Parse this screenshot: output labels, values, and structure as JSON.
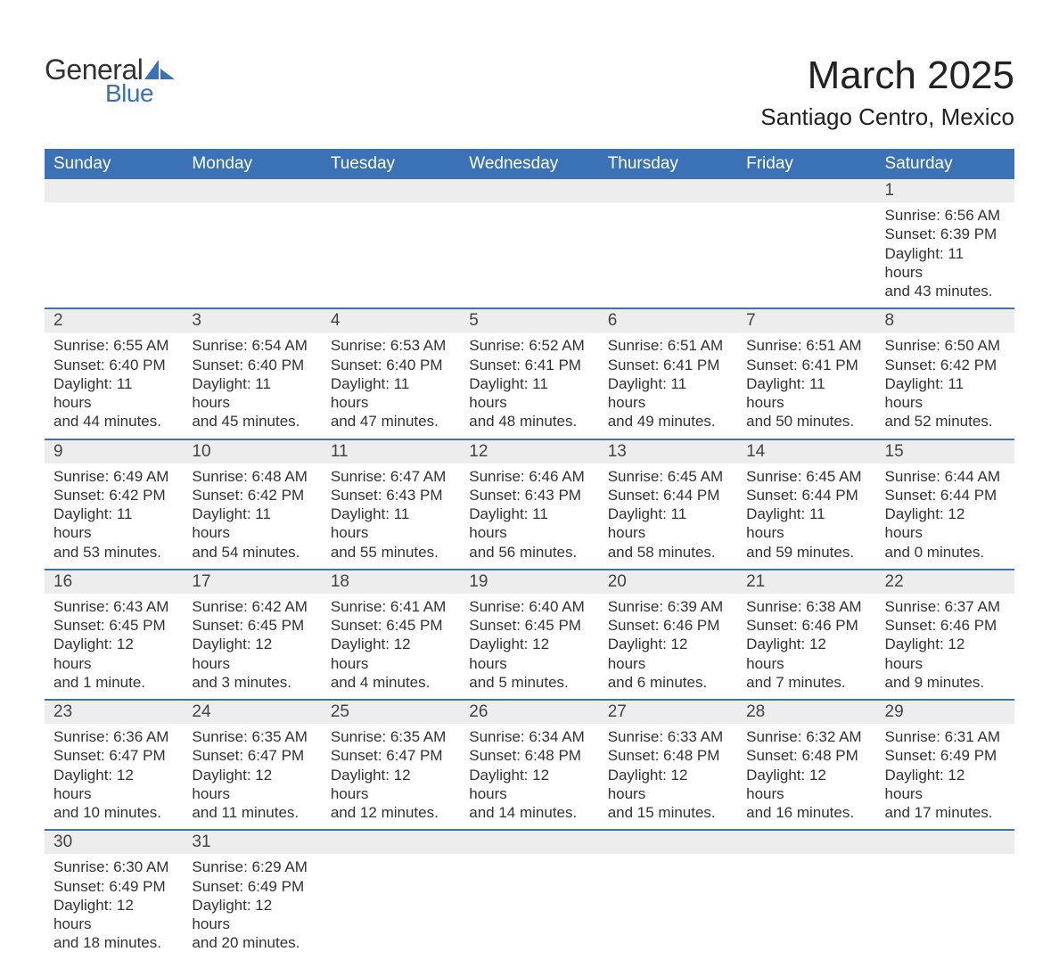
{
  "brand": {
    "name1": "General",
    "name2": "Blue",
    "text_color": "#333333",
    "accent_color": "#3a72b5"
  },
  "title": "March 2025",
  "location": "Santiago Centro, Mexico",
  "header_bg": "#3a72b5",
  "header_fg": "#ffffff",
  "daynum_bg": "#ededed",
  "row_border": "#3a72b5",
  "body_bg": "#ffffff",
  "text_color": "#333333",
  "font_family": "Arial, Helvetica, sans-serif",
  "title_fontsize": 44,
  "location_fontsize": 26,
  "header_fontsize": 19,
  "daynum_fontsize": 19,
  "detail_fontsize": 17,
  "day_headers": [
    "Sunday",
    "Monday",
    "Tuesday",
    "Wednesday",
    "Thursday",
    "Friday",
    "Saturday"
  ],
  "weeks": [
    [
      null,
      null,
      null,
      null,
      null,
      null,
      {
        "n": "1",
        "sr": "Sunrise: 6:56 AM",
        "ss": "Sunset: 6:39 PM",
        "d1": "Daylight: 11 hours",
        "d2": "and 43 minutes."
      }
    ],
    [
      {
        "n": "2",
        "sr": "Sunrise: 6:55 AM",
        "ss": "Sunset: 6:40 PM",
        "d1": "Daylight: 11 hours",
        "d2": "and 44 minutes."
      },
      {
        "n": "3",
        "sr": "Sunrise: 6:54 AM",
        "ss": "Sunset: 6:40 PM",
        "d1": "Daylight: 11 hours",
        "d2": "and 45 minutes."
      },
      {
        "n": "4",
        "sr": "Sunrise: 6:53 AM",
        "ss": "Sunset: 6:40 PM",
        "d1": "Daylight: 11 hours",
        "d2": "and 47 minutes."
      },
      {
        "n": "5",
        "sr": "Sunrise: 6:52 AM",
        "ss": "Sunset: 6:41 PM",
        "d1": "Daylight: 11 hours",
        "d2": "and 48 minutes."
      },
      {
        "n": "6",
        "sr": "Sunrise: 6:51 AM",
        "ss": "Sunset: 6:41 PM",
        "d1": "Daylight: 11 hours",
        "d2": "and 49 minutes."
      },
      {
        "n": "7",
        "sr": "Sunrise: 6:51 AM",
        "ss": "Sunset: 6:41 PM",
        "d1": "Daylight: 11 hours",
        "d2": "and 50 minutes."
      },
      {
        "n": "8",
        "sr": "Sunrise: 6:50 AM",
        "ss": "Sunset: 6:42 PM",
        "d1": "Daylight: 11 hours",
        "d2": "and 52 minutes."
      }
    ],
    [
      {
        "n": "9",
        "sr": "Sunrise: 6:49 AM",
        "ss": "Sunset: 6:42 PM",
        "d1": "Daylight: 11 hours",
        "d2": "and 53 minutes."
      },
      {
        "n": "10",
        "sr": "Sunrise: 6:48 AM",
        "ss": "Sunset: 6:42 PM",
        "d1": "Daylight: 11 hours",
        "d2": "and 54 minutes."
      },
      {
        "n": "11",
        "sr": "Sunrise: 6:47 AM",
        "ss": "Sunset: 6:43 PM",
        "d1": "Daylight: 11 hours",
        "d2": "and 55 minutes."
      },
      {
        "n": "12",
        "sr": "Sunrise: 6:46 AM",
        "ss": "Sunset: 6:43 PM",
        "d1": "Daylight: 11 hours",
        "d2": "and 56 minutes."
      },
      {
        "n": "13",
        "sr": "Sunrise: 6:45 AM",
        "ss": "Sunset: 6:44 PM",
        "d1": "Daylight: 11 hours",
        "d2": "and 58 minutes."
      },
      {
        "n": "14",
        "sr": "Sunrise: 6:45 AM",
        "ss": "Sunset: 6:44 PM",
        "d1": "Daylight: 11 hours",
        "d2": "and 59 minutes."
      },
      {
        "n": "15",
        "sr": "Sunrise: 6:44 AM",
        "ss": "Sunset: 6:44 PM",
        "d1": "Daylight: 12 hours",
        "d2": "and 0 minutes."
      }
    ],
    [
      {
        "n": "16",
        "sr": "Sunrise: 6:43 AM",
        "ss": "Sunset: 6:45 PM",
        "d1": "Daylight: 12 hours",
        "d2": "and 1 minute."
      },
      {
        "n": "17",
        "sr": "Sunrise: 6:42 AM",
        "ss": "Sunset: 6:45 PM",
        "d1": "Daylight: 12 hours",
        "d2": "and 3 minutes."
      },
      {
        "n": "18",
        "sr": "Sunrise: 6:41 AM",
        "ss": "Sunset: 6:45 PM",
        "d1": "Daylight: 12 hours",
        "d2": "and 4 minutes."
      },
      {
        "n": "19",
        "sr": "Sunrise: 6:40 AM",
        "ss": "Sunset: 6:45 PM",
        "d1": "Daylight: 12 hours",
        "d2": "and 5 minutes."
      },
      {
        "n": "20",
        "sr": "Sunrise: 6:39 AM",
        "ss": "Sunset: 6:46 PM",
        "d1": "Daylight: 12 hours",
        "d2": "and 6 minutes."
      },
      {
        "n": "21",
        "sr": "Sunrise: 6:38 AM",
        "ss": "Sunset: 6:46 PM",
        "d1": "Daylight: 12 hours",
        "d2": "and 7 minutes."
      },
      {
        "n": "22",
        "sr": "Sunrise: 6:37 AM",
        "ss": "Sunset: 6:46 PM",
        "d1": "Daylight: 12 hours",
        "d2": "and 9 minutes."
      }
    ],
    [
      {
        "n": "23",
        "sr": "Sunrise: 6:36 AM",
        "ss": "Sunset: 6:47 PM",
        "d1": "Daylight: 12 hours",
        "d2": "and 10 minutes."
      },
      {
        "n": "24",
        "sr": "Sunrise: 6:35 AM",
        "ss": "Sunset: 6:47 PM",
        "d1": "Daylight: 12 hours",
        "d2": "and 11 minutes."
      },
      {
        "n": "25",
        "sr": "Sunrise: 6:35 AM",
        "ss": "Sunset: 6:47 PM",
        "d1": "Daylight: 12 hours",
        "d2": "and 12 minutes."
      },
      {
        "n": "26",
        "sr": "Sunrise: 6:34 AM",
        "ss": "Sunset: 6:48 PM",
        "d1": "Daylight: 12 hours",
        "d2": "and 14 minutes."
      },
      {
        "n": "27",
        "sr": "Sunrise: 6:33 AM",
        "ss": "Sunset: 6:48 PM",
        "d1": "Daylight: 12 hours",
        "d2": "and 15 minutes."
      },
      {
        "n": "28",
        "sr": "Sunrise: 6:32 AM",
        "ss": "Sunset: 6:48 PM",
        "d1": "Daylight: 12 hours",
        "d2": "and 16 minutes."
      },
      {
        "n": "29",
        "sr": "Sunrise: 6:31 AM",
        "ss": "Sunset: 6:49 PM",
        "d1": "Daylight: 12 hours",
        "d2": "and 17 minutes."
      }
    ],
    [
      {
        "n": "30",
        "sr": "Sunrise: 6:30 AM",
        "ss": "Sunset: 6:49 PM",
        "d1": "Daylight: 12 hours",
        "d2": "and 18 minutes."
      },
      {
        "n": "31",
        "sr": "Sunrise: 6:29 AM",
        "ss": "Sunset: 6:49 PM",
        "d1": "Daylight: 12 hours",
        "d2": "and 20 minutes."
      },
      null,
      null,
      null,
      null,
      null
    ]
  ]
}
